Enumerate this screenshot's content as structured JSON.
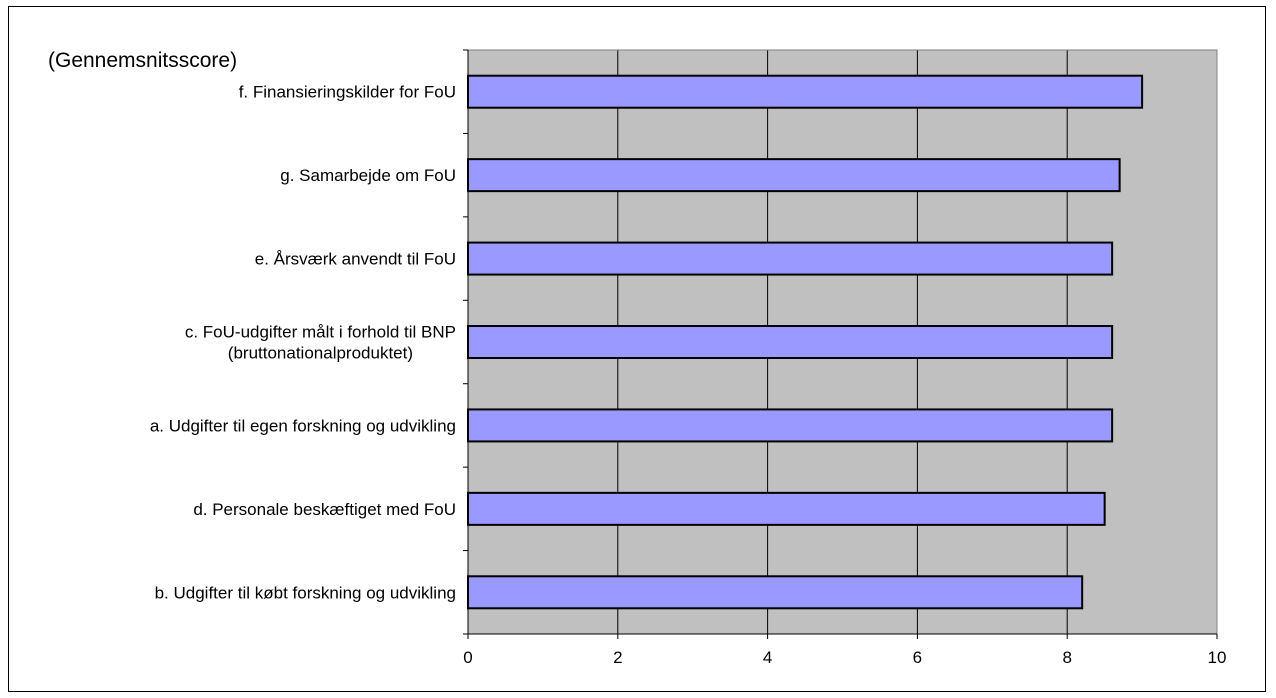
{
  "chart_data": {
    "type": "bar",
    "orientation": "horizontal",
    "title": "(Gennemsnitsscore)",
    "xlabel": "",
    "ylabel": "",
    "categories": [
      [
        "f. Finansieringskilder for FoU"
      ],
      [
        "g. Samarbejde om FoU"
      ],
      [
        "e. Årsværk anvendt til FoU"
      ],
      [
        "c. FoU-udgifter målt i forhold til BNP",
        "(bruttonationalproduktet)"
      ],
      [
        "a. Udgifter til egen forskning og udvikling"
      ],
      [
        "d. Personale beskæftiget med FoU"
      ],
      [
        "b. Udgifter til købt forskning og udvikling"
      ]
    ],
    "values": [
      9.0,
      8.7,
      8.6,
      8.6,
      8.6,
      8.5,
      8.2
    ],
    "xlim": [
      0,
      10
    ],
    "xticks": [
      "0",
      "2",
      "4",
      "6",
      "8",
      "10"
    ],
    "grid": true,
    "legend": "none",
    "colors": {
      "bar": "#9999FF",
      "plot_background": "#C0C0C0",
      "gridline": "#000000"
    }
  }
}
